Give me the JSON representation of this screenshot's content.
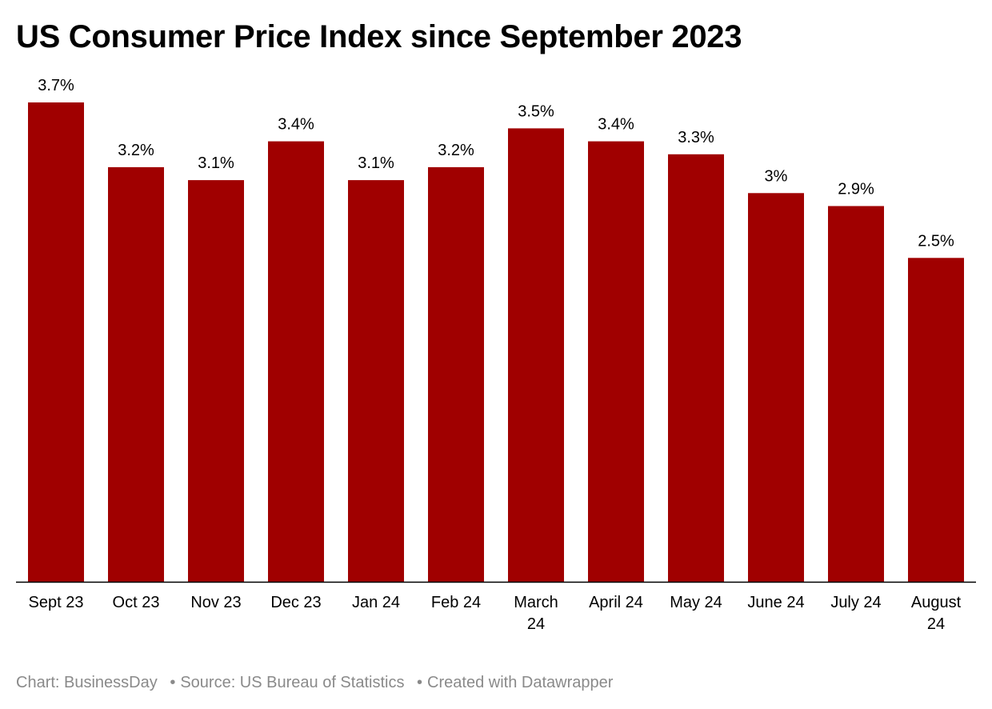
{
  "title": "US Consumer Price Index since September 2023",
  "footer": {
    "chart_credit": "Chart: BusinessDay",
    "source": "Source: US Bureau of Statistics",
    "created_with": "Created with Datawrapper",
    "separator": "•"
  },
  "colors": {
    "bar": "#a00000",
    "axis": "#000000",
    "text": "#000000",
    "footer_text": "#8a8a8a"
  },
  "chart_data": {
    "type": "bar",
    "title": "US Consumer Price Index since September 2023",
    "xlabel": "",
    "ylabel": "",
    "categories": [
      [
        "Sept 23"
      ],
      [
        "Oct 23"
      ],
      [
        "Nov 23"
      ],
      [
        "Dec 23"
      ],
      [
        "Jan 24"
      ],
      [
        "Feb 24"
      ],
      [
        "March",
        "24"
      ],
      [
        "April 24"
      ],
      [
        "May 24"
      ],
      [
        "June 24"
      ],
      [
        "July 24"
      ],
      [
        "August",
        "24"
      ]
    ],
    "values": [
      3.7,
      3.2,
      3.1,
      3.4,
      3.1,
      3.2,
      3.5,
      3.4,
      3.3,
      3.0,
      2.9,
      2.5
    ],
    "value_labels": [
      "3.7%",
      "3.2%",
      "3.1%",
      "3.4%",
      "3.1%",
      "3.2%",
      "3.5%",
      "3.4%",
      "3.3%",
      "3%",
      "2.9%",
      "2.5%"
    ],
    "ylim": [
      0,
      3.7
    ],
    "grid": false,
    "legend": "none"
  }
}
